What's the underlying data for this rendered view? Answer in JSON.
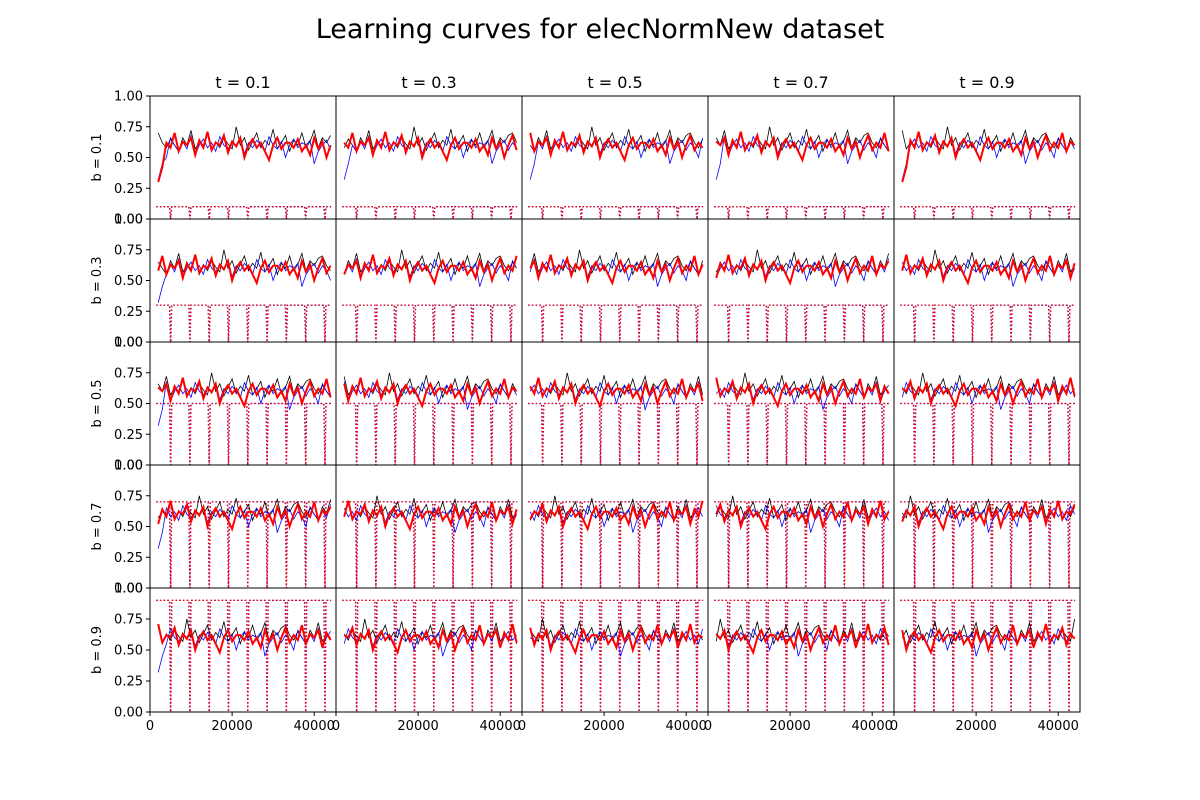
{
  "chart_data": {
    "type": "line",
    "title": "Learning curves for elecNormNew dataset",
    "column_titles": [
      "t = 0.1",
      "t = 0.3",
      "t = 0.5",
      "t = 0.7",
      "t = 0.9"
    ],
    "row_labels": [
      "b = 0.1",
      "b = 0.3",
      "b = 0.5",
      "b = 0.7",
      "b = 0.9"
    ],
    "xlim": [
      0,
      45312
    ],
    "ylim": [
      0,
      1
    ],
    "x_ticks": [
      0,
      20000,
      40000
    ],
    "x_tick_labels": [
      "0",
      "20000",
      "40000"
    ],
    "y_ticks": [
      0,
      0.25,
      0.5,
      0.75,
      1.0
    ],
    "y_tick_labels": [
      "0.00",
      "0.25",
      "0.50",
      "0.75",
      "1.00"
    ],
    "x": [
      2000,
      3000,
      4000,
      5000,
      6000,
      7000,
      8000,
      9000,
      10000,
      11000,
      12000,
      13000,
      14000,
      15000,
      16000,
      17000,
      18000,
      19000,
      20000,
      21000,
      22000,
      23000,
      24000,
      25000,
      26000,
      27000,
      28000,
      29000,
      30000,
      31000,
      32000,
      33000,
      34000,
      35000,
      36000,
      37000,
      38000,
      39000,
      40000,
      41000,
      42000,
      43000,
      44000
    ],
    "series_colors": {
      "black_solid": "#000000",
      "blue_solid": "#0000ff",
      "red_solid": "#ff0000",
      "blue_dotted": "#0000ff",
      "red_dotted": "#ff0000"
    },
    "reference_accuracy": [
      0.7,
      0.62,
      0.58,
      0.65,
      0.6,
      0.55,
      0.66,
      0.6,
      0.72,
      0.57,
      0.62,
      0.6,
      0.69,
      0.55,
      0.63,
      0.58,
      0.66,
      0.61,
      0.57,
      0.75,
      0.6,
      0.66,
      0.56,
      0.63,
      0.7,
      0.58,
      0.64,
      0.6,
      0.73,
      0.57,
      0.62,
      0.68,
      0.55,
      0.64,
      0.6,
      0.7,
      0.58,
      0.63,
      0.72,
      0.58,
      0.66,
      0.62,
      0.68
    ],
    "base_accuracy": [
      0.45,
      0.55,
      0.6,
      0.64,
      0.56,
      0.62,
      0.58,
      0.5,
      0.66,
      0.6,
      0.55,
      0.63,
      0.57,
      0.68,
      0.52,
      0.6,
      0.65,
      0.58,
      0.62,
      0.55,
      0.67,
      0.6,
      0.57,
      0.63,
      0.59,
      0.66,
      0.53,
      0.62,
      0.58,
      0.64,
      0.6,
      0.55,
      0.67,
      0.6,
      0.57,
      0.63,
      0.5,
      0.6,
      0.65,
      0.58,
      0.62,
      0.6,
      0.64
    ],
    "model_accuracy": [
      0.62,
      0.58,
      0.65,
      0.55,
      0.6,
      0.52,
      0.66,
      0.57,
      0.63,
      0.5,
      0.6,
      0.68,
      0.56,
      0.62,
      0.58,
      0.7,
      0.55,
      0.63,
      0.6,
      0.66,
      0.52,
      0.64,
      0.58,
      0.71,
      0.56,
      0.62,
      0.6,
      0.68,
      0.54,
      0.63,
      0.59,
      0.66,
      0.5,
      0.6,
      0.65,
      0.58,
      0.62,
      0.55,
      0.48,
      0.6,
      0.66,
      0.57,
      0.62
    ],
    "dip_positions": [
      5000,
      9700,
      14400,
      19100,
      23800,
      28500,
      33200,
      37900,
      42600
    ]
  }
}
